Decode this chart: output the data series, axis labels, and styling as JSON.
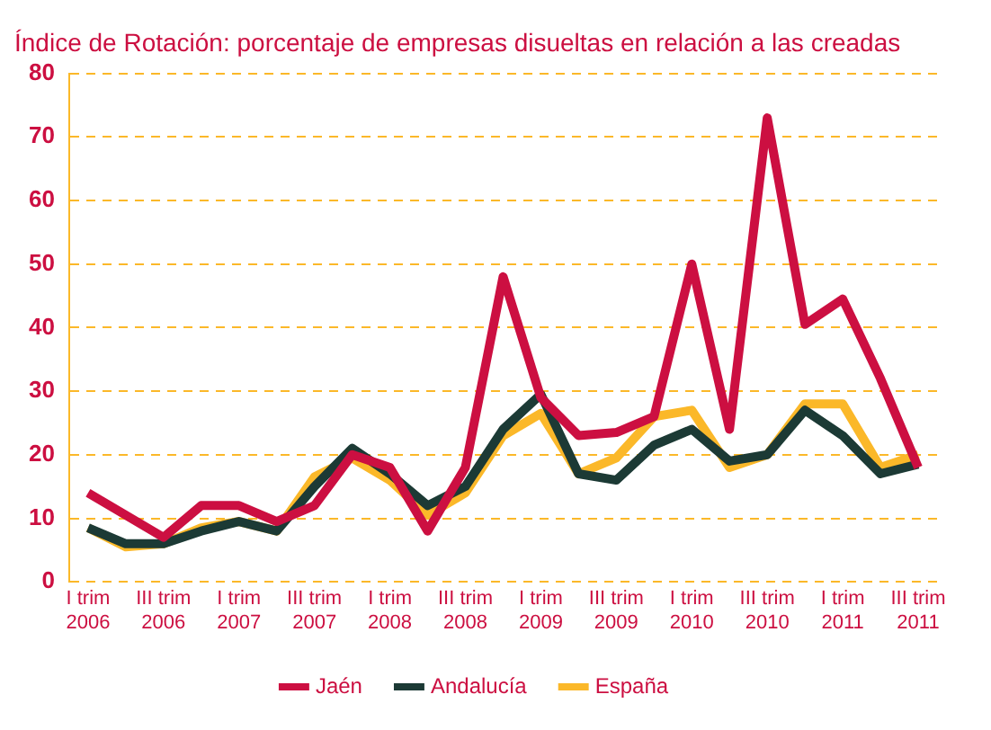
{
  "chart_data": {
    "type": "line",
    "title": "Índice de Rotación: porcentaje de empresas disueltas en relación a las creadas",
    "categories": [
      "I trim 2006",
      null,
      "III trim 2006",
      null,
      "I trim 2007",
      null,
      "III trim 2007",
      null,
      "I trim 2008",
      null,
      "III trim 2008",
      null,
      "I trim 2009",
      null,
      "III trim 2009",
      null,
      "I trim 2010",
      null,
      "III trim 2010",
      null,
      "I trim 2011",
      null,
      "III trim 2011"
    ],
    "series": [
      {
        "name": "Jaén",
        "color": "#cc0f41",
        "values": [
          14,
          10.5,
          7,
          12,
          12,
          9.5,
          12,
          20,
          18,
          8,
          18,
          48,
          29,
          23,
          23.5,
          26,
          50,
          24,
          73,
          40.5,
          44.5,
          32,
          18
        ]
      },
      {
        "name": "Andalucía",
        "color": "#1c3a35",
        "values": [
          8.5,
          6,
          6,
          8,
          9.5,
          8,
          15,
          21,
          17,
          12,
          15,
          24,
          29.5,
          17,
          16,
          21.5,
          24,
          19,
          20,
          27,
          23,
          17,
          18.5
        ]
      },
      {
        "name": "España",
        "color": "#fbb829",
        "values": [
          8.5,
          5.5,
          6,
          8.5,
          9.5,
          8,
          16.5,
          19.5,
          16,
          10.5,
          14,
          23,
          26.5,
          17,
          19.5,
          26,
          27,
          18,
          20,
          28,
          28,
          18,
          20
        ]
      }
    ],
    "ylim": [
      0,
      80
    ],
    "yticks": [
      0,
      10,
      20,
      30,
      40,
      50,
      60,
      70,
      80
    ],
    "grid": "y",
    "legend": "bottom",
    "marker": "none",
    "line_style": "solid"
  }
}
